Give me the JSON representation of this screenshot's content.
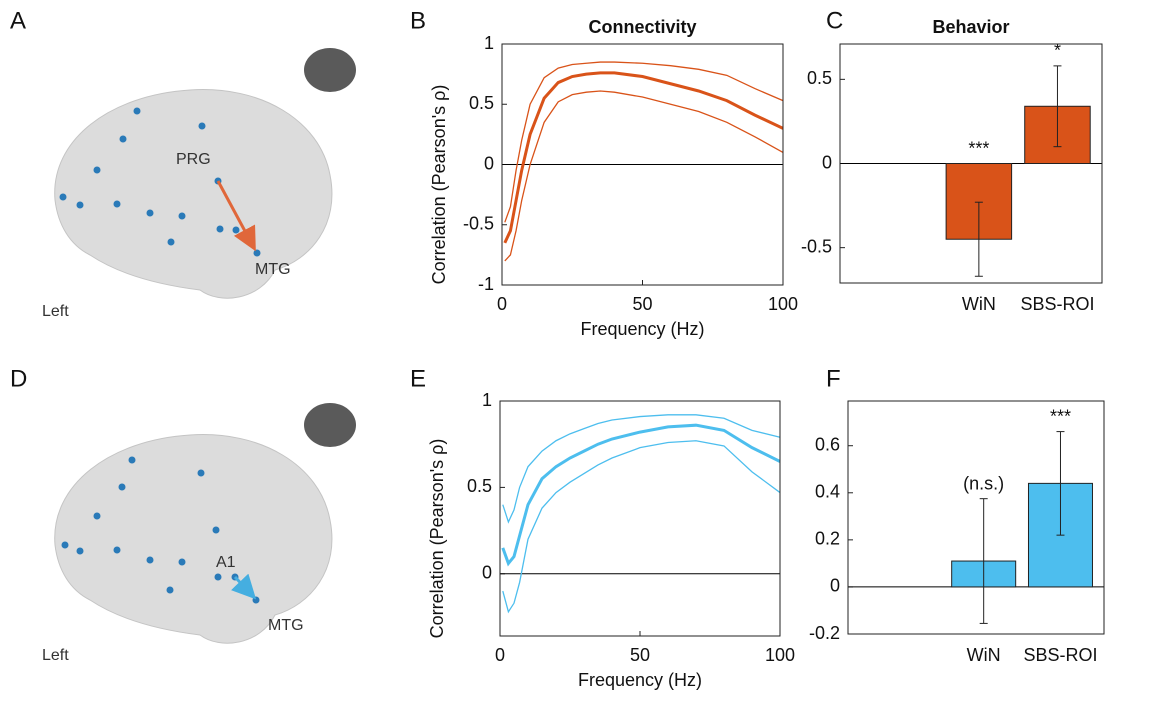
{
  "chart_data": [
    {
      "panel": "B",
      "type": "line",
      "title": "Connectivity",
      "xlabel": "Frequency (Hz)",
      "ylabel": "Correlation (Pearson's ρ)",
      "x": [
        1,
        3,
        5,
        7,
        10,
        15,
        20,
        25,
        30,
        35,
        40,
        50,
        60,
        70,
        80,
        90,
        100
      ],
      "series": [
        {
          "color": "#d95319",
          "values": [
            -0.65,
            -0.55,
            -0.3,
            -0.05,
            0.25,
            0.55,
            0.68,
            0.73,
            0.75,
            0.76,
            0.76,
            0.73,
            0.67,
            0.61,
            0.53,
            0.41,
            0.3
          ]
        },
        {
          "color": "#d95319",
          "values": [
            -0.48,
            -0.35,
            -0.05,
            0.2,
            0.5,
            0.72,
            0.8,
            0.83,
            0.84,
            0.85,
            0.85,
            0.84,
            0.82,
            0.79,
            0.74,
            0.63,
            0.53
          ]
        },
        {
          "color": "#d95319",
          "values": [
            -0.8,
            -0.75,
            -0.55,
            -0.3,
            0,
            0.35,
            0.52,
            0.58,
            0.6,
            0.61,
            0.6,
            0.56,
            0.5,
            0.44,
            0.35,
            0.23,
            0.1
          ]
        }
      ],
      "xlim": [
        0,
        100
      ],
      "xticks": [
        0,
        50,
        100
      ],
      "ylim": [
        -1,
        1
      ],
      "yticks": [
        -1,
        -0.5,
        0,
        0.5,
        1
      ]
    },
    {
      "panel": "C",
      "type": "bar",
      "title": "Behavior",
      "categories": [
        "WiN",
        "SBS-ROI"
      ],
      "values": [
        -0.45,
        0.34
      ],
      "errors": [
        0.22,
        0.24
      ],
      "annotations": [
        "***",
        "*"
      ],
      "color": "#d95319",
      "ylim": [
        -0.71,
        0.71
      ],
      "yticks": [
        -0.5,
        0,
        0.5
      ]
    },
    {
      "panel": "E",
      "type": "line",
      "xlabel": "Frequency (Hz)",
      "ylabel": "Correlation (Pearson's ρ)",
      "x": [
        1,
        3,
        5,
        7,
        10,
        15,
        20,
        25,
        30,
        35,
        40,
        50,
        60,
        70,
        80,
        90,
        100
      ],
      "series": [
        {
          "color": "#4dbeee",
          "values": [
            0.15,
            0.06,
            0.1,
            0.22,
            0.4,
            0.55,
            0.62,
            0.67,
            0.71,
            0.75,
            0.78,
            0.82,
            0.85,
            0.86,
            0.83,
            0.73,
            0.65
          ]
        },
        {
          "color": "#4dbeee",
          "values": [
            0.4,
            0.3,
            0.37,
            0.5,
            0.62,
            0.71,
            0.77,
            0.81,
            0.84,
            0.87,
            0.89,
            0.91,
            0.92,
            0.92,
            0.9,
            0.83,
            0.79
          ]
        },
        {
          "color": "#4dbeee",
          "values": [
            -0.1,
            -0.22,
            -0.17,
            -0.05,
            0.2,
            0.38,
            0.47,
            0.53,
            0.58,
            0.63,
            0.67,
            0.73,
            0.76,
            0.77,
            0.74,
            0.59,
            0.47
          ]
        }
      ],
      "xlim": [
        0,
        100
      ],
      "xticks": [
        0,
        50,
        100
      ],
      "ylim": [
        -0.36,
        1
      ],
      "yticks": [
        0,
        0.5,
        1
      ]
    },
    {
      "panel": "F",
      "type": "bar",
      "categories": [
        "WiN",
        "SBS-ROI"
      ],
      "values": [
        0.11,
        0.44
      ],
      "errors": [
        0.265,
        0.22
      ],
      "annotations": [
        "(n.s.)",
        "***"
      ],
      "color": "#4dbeee",
      "ylim": [
        -0.2,
        0.79
      ],
      "yticks": [
        -0.2,
        0,
        0.2,
        0.4,
        0.6
      ]
    }
  ],
  "brains": [
    {
      "panel": "A",
      "labels": [
        "PRG",
        "MTG"
      ],
      "side": "Left"
    },
    {
      "panel": "D",
      "labels": [
        "A1",
        "MTG"
      ],
      "side": "Left"
    }
  ]
}
